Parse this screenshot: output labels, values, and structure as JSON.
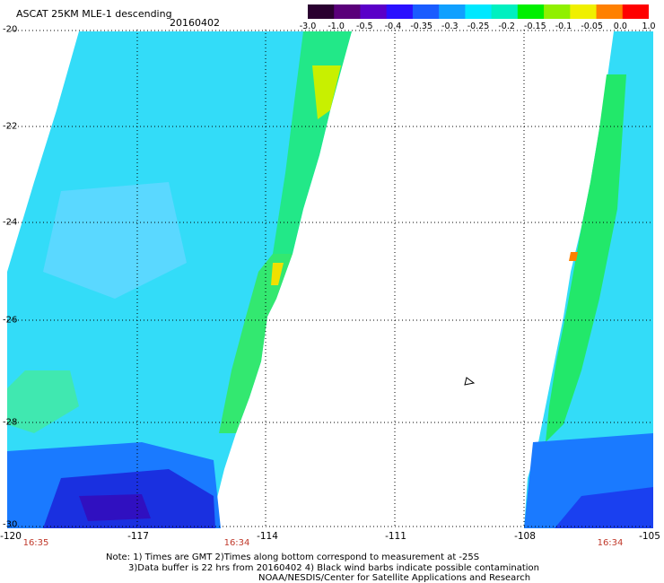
{
  "header": {
    "title": "ASCAT 25KM MLE-1 descending",
    "date": "20160402"
  },
  "colorbar": {
    "labels": [
      "-3.0",
      "-1.0",
      "-0.5",
      "-0.4",
      "-0.35",
      "-0.3",
      "-0.25",
      "-0.2",
      "-0.15",
      "-0.1",
      "-0.05",
      "0.0",
      "1.0"
    ],
    "colors": [
      "#2a0030",
      "#5a007a",
      "#5a00c8",
      "#2a10ff",
      "#1a5cff",
      "#10a0ff",
      "#00e8ff",
      "#00f0c0",
      "#00f000",
      "#90f000",
      "#f0f000",
      "#ff8000",
      "#ff0000"
    ]
  },
  "axes": {
    "lat_labels": [
      "-20",
      "-22",
      "-24",
      "-26",
      "-28",
      "-30"
    ],
    "lon_labels": [
      "-120",
      "-117",
      "-114",
      "-111",
      "-108",
      "-105"
    ],
    "lat_range": [
      -20,
      -30
    ],
    "lon_range": [
      -120,
      -105
    ]
  },
  "swath_times": [
    "16:35",
    "16:34",
    "16:34"
  ],
  "notes": {
    "line1": "Note: 1) Times are GMT 2)Times along bottom correspond to measurement at -25S",
    "line2": "3)Data buffer is 22 hrs from 20160402 4) Black wind barbs indicate possible contamination",
    "line3": "NOAA/NESDIS/Center for Satellite Applications and Research"
  }
}
